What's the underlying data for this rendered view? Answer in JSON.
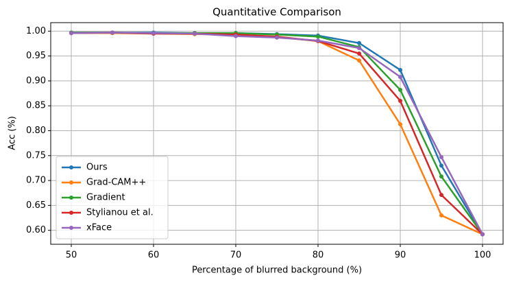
{
  "chart_data": {
    "type": "line",
    "title": "Quantitative Comparison",
    "x_label": "Percentage of blurred background (%)",
    "y_label": "Acc (%)",
    "x": [
      50,
      55,
      60,
      65,
      70,
      75,
      80,
      85,
      90,
      95,
      100
    ],
    "series": [
      {
        "name": "Ours",
        "color": "#1f77b4",
        "values": [
          0.997,
          0.997,
          0.997,
          0.996,
          0.996,
          0.994,
          0.991,
          0.976,
          0.922,
          0.73,
          0.592
        ]
      },
      {
        "name": "Grad-CAM++",
        "color": "#ff7f0e",
        "values": [
          0.996,
          0.996,
          0.995,
          0.994,
          0.993,
          0.988,
          0.98,
          0.941,
          0.813,
          0.63,
          0.592
        ]
      },
      {
        "name": "Gradient",
        "color": "#2ca02c",
        "values": [
          0.997,
          0.997,
          0.996,
          0.996,
          0.996,
          0.993,
          0.989,
          0.968,
          0.882,
          0.708,
          0.592
        ]
      },
      {
        "name": "Stylianou et al.",
        "color": "#d62728",
        "values": [
          0.996,
          0.997,
          0.995,
          0.995,
          0.993,
          0.989,
          0.98,
          0.955,
          0.86,
          0.671,
          0.592
        ]
      },
      {
        "name": "xFace",
        "color": "#9467bd",
        "values": [
          0.996,
          0.997,
          0.996,
          0.995,
          0.99,
          0.987,
          0.981,
          0.966,
          0.908,
          0.747,
          0.592
        ]
      }
    ],
    "xlim": [
      47.5,
      102.5
    ],
    "ylim": [
      0.572,
      1.017
    ],
    "xticks": [
      50,
      60,
      70,
      80,
      90,
      100
    ],
    "yticks": [
      {
        "value": 0.6,
        "label": "0.60"
      },
      {
        "value": 0.65,
        "label": "0.65"
      },
      {
        "value": 0.7,
        "label": "0.70"
      },
      {
        "value": 0.75,
        "label": "0.75"
      },
      {
        "value": 0.8,
        "label": "0.80"
      },
      {
        "value": 0.85,
        "label": "0.85"
      },
      {
        "value": 0.9,
        "label": "0.90"
      },
      {
        "value": 0.95,
        "label": "0.95"
      },
      {
        "value": 1.0,
        "label": "1.00"
      }
    ],
    "grid": true,
    "legend": "lower left"
  }
}
